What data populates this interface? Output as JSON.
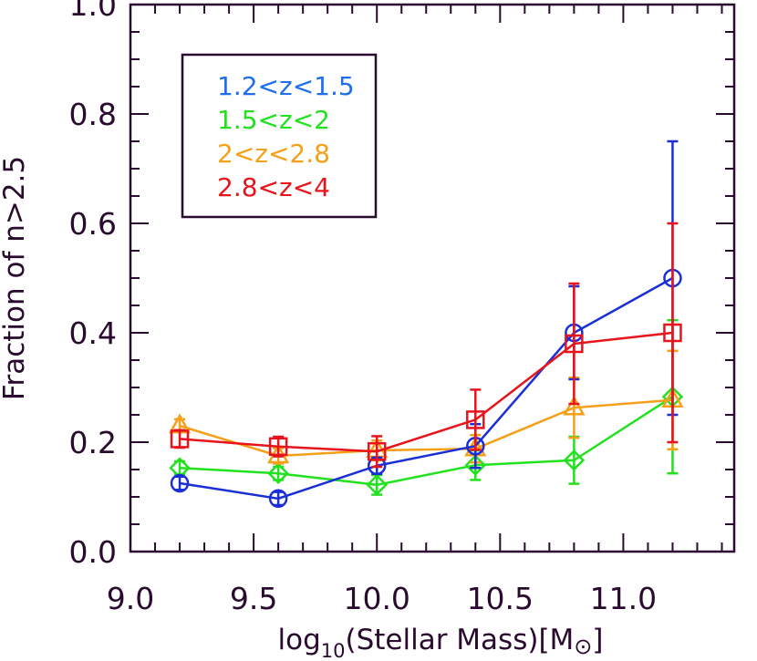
{
  "chart_data": {
    "type": "line",
    "title": "",
    "xlabel": "log",
    "xlabel_sub": "10",
    "xlabel_rest": "(Stellar Mass)[M",
    "xlabel_sun": "⊙",
    "xlabel_end": "]",
    "ylabel": "Fraction of n>2.5",
    "xlim": [
      9.0,
      11.45
    ],
    "ylim": [
      0.0,
      1.0
    ],
    "xticks": [
      9.0,
      9.5,
      10.0,
      10.5,
      11.0
    ],
    "xtick_labels": [
      "9.0",
      "9.5",
      "10.0",
      "10.5",
      "11.0"
    ],
    "yticks": [
      0.0,
      0.2,
      0.4,
      0.6,
      0.8,
      1.0
    ],
    "ytick_labels": [
      "0.0",
      "0.2",
      "0.4",
      "0.6",
      "0.8",
      "1.0"
    ],
    "grid": false,
    "legend_position": "top-left",
    "series": [
      {
        "name": "1.2<z<1.5",
        "color": "#1a2fd6",
        "legend_color": "#1f6ef0",
        "marker": "circle",
        "x": [
          9.2,
          9.6,
          10.0,
          10.4,
          10.8,
          11.2
        ],
        "y": [
          0.125,
          0.097,
          0.157,
          0.193,
          0.4,
          0.5
        ],
        "err_low": [
          0.012,
          0.012,
          0.015,
          0.04,
          0.085,
          0.25
        ],
        "err_high": [
          0.012,
          0.012,
          0.015,
          0.04,
          0.085,
          0.25
        ]
      },
      {
        "name": "1.5<z<2",
        "color": "#22e11e",
        "legend_color": "#22e11e",
        "marker": "diamond",
        "x": [
          9.2,
          9.6,
          10.0,
          10.4,
          10.8,
          11.2
        ],
        "y": [
          0.153,
          0.143,
          0.122,
          0.158,
          0.167,
          0.283
        ],
        "err_low": [
          0.012,
          0.012,
          0.018,
          0.027,
          0.043,
          0.14
        ],
        "err_high": [
          0.012,
          0.012,
          0.018,
          0.027,
          0.043,
          0.14
        ]
      },
      {
        "name": "2<z<2.8",
        "color": "#f5a017",
        "legend_color": "#f5a017",
        "marker": "triangle",
        "x": [
          9.2,
          9.6,
          10.0,
          10.4,
          10.8,
          11.2
        ],
        "y": [
          0.23,
          0.175,
          0.185,
          0.188,
          0.263,
          0.277
        ],
        "err_low": [
          0.012,
          0.014,
          0.018,
          0.025,
          0.055,
          0.09
        ],
        "err_high": [
          0.012,
          0.014,
          0.018,
          0.025,
          0.055,
          0.09
        ]
      },
      {
        "name": "2.8<z<4",
        "color": "#e8141c",
        "legend_color": "#e8141c",
        "marker": "square",
        "x": [
          9.2,
          9.6,
          10.0,
          10.4,
          10.8,
          11.2
        ],
        "y": [
          0.206,
          0.192,
          0.183,
          0.241,
          0.38,
          0.4
        ],
        "err_low": [
          0.016,
          0.018,
          0.028,
          0.055,
          0.11,
          0.2
        ],
        "err_high": [
          0.016,
          0.018,
          0.028,
          0.055,
          0.11,
          0.2
        ]
      }
    ]
  },
  "colors": {
    "frame": "#2a0a2e"
  }
}
